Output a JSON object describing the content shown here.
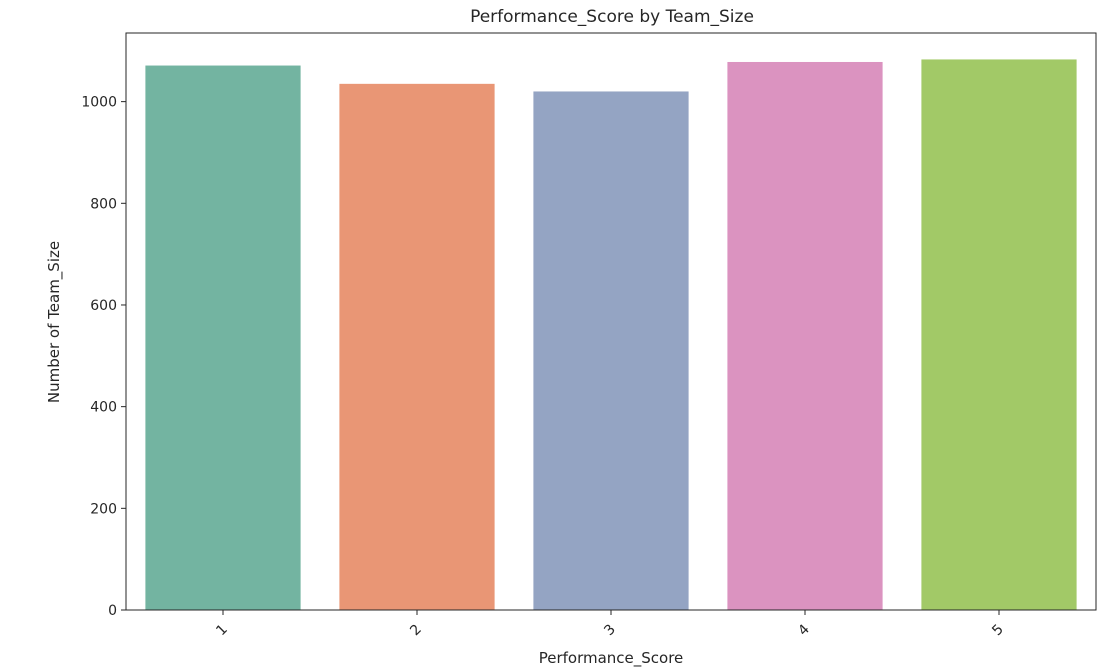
{
  "chart_data": {
    "type": "bar",
    "title": "Performance_Score by Team_Size",
    "xlabel": "Performance_Score",
    "ylabel": "Number of Team_Size",
    "categories": [
      "1",
      "2",
      "3",
      "4",
      "5"
    ],
    "values": [
      1071,
      1035,
      1020,
      1078,
      1083
    ],
    "colors": [
      "#73b4a1",
      "#e99675",
      "#94a4c3",
      "#db93c0",
      "#a2c967"
    ],
    "ylim": [
      0,
      1135
    ],
    "yticks": [
      0,
      200,
      400,
      600,
      800,
      1000
    ],
    "grid": false,
    "legend": "none",
    "xtick_rotation": -45
  }
}
